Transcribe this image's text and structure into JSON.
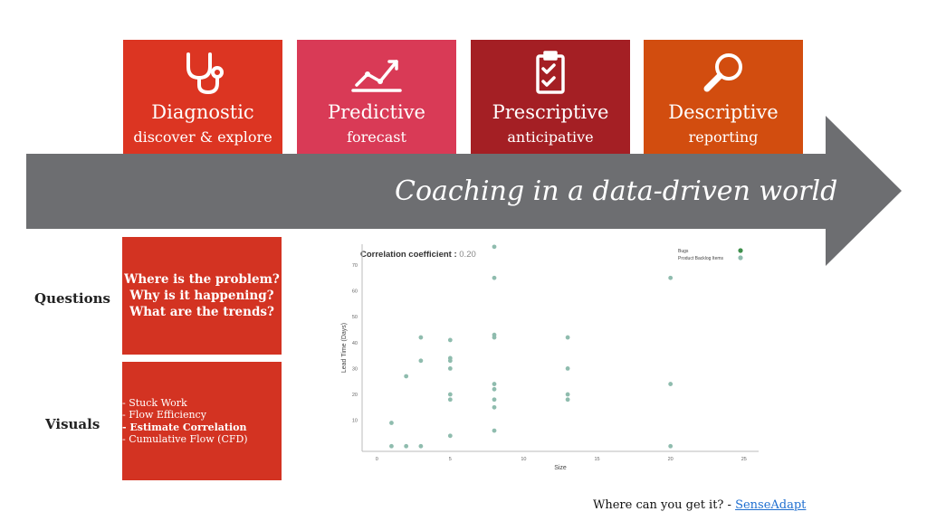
{
  "cards": [
    {
      "title": "Diagnostic",
      "subtitle": "discover & explore",
      "icon": "stethoscope-icon",
      "color": "#dc3522"
    },
    {
      "title": "Predictive",
      "subtitle": "forecast",
      "icon": "trend-chart-icon",
      "color": "#d93a56"
    },
    {
      "title": "Prescriptive",
      "subtitle": "anticipative",
      "icon": "clipboard-check-icon",
      "color": "#a41f24"
    },
    {
      "title": "Descriptive",
      "subtitle": "reporting",
      "icon": "magnifier-icon",
      "color": "#d24d0f"
    }
  ],
  "arrow": {
    "text": "Coaching in a data-driven world",
    "color": "#6d6e71"
  },
  "rows": {
    "questions_label": "Questions",
    "visuals_label": "Visuals"
  },
  "questions": [
    "Where is the problem?",
    "Why is it happening?",
    "What are the trends?"
  ],
  "visuals": [
    "- Stuck Work",
    "- Flow Efficiency",
    "- Estimate Correlation",
    "- Cumulative Flow (CFD)"
  ],
  "chart_data": {
    "type": "scatter",
    "title": "Correlation coefficient :",
    "title_value": "0.20",
    "xlabel": "Size",
    "ylabel": "Lead Time (Days)",
    "xlim": [
      -1,
      26
    ],
    "ylim": [
      -2,
      78
    ],
    "xticks": [
      0,
      5,
      10,
      15,
      20,
      25
    ],
    "yticks": [
      10,
      20,
      30,
      40,
      50,
      60,
      70
    ],
    "legend": [
      "Bugs",
      "Product Backlog Items"
    ],
    "legend_position": "top-right",
    "colors": [
      "#3f8f4c",
      "#8fbcae"
    ],
    "points": [
      {
        "x": 1,
        "y": 9
      },
      {
        "x": 1,
        "y": 0
      },
      {
        "x": 2,
        "y": 27
      },
      {
        "x": 2,
        "y": 0
      },
      {
        "x": 3,
        "y": 42
      },
      {
        "x": 3,
        "y": 33
      },
      {
        "x": 3,
        "y": 0
      },
      {
        "x": 5,
        "y": 41
      },
      {
        "x": 5,
        "y": 34
      },
      {
        "x": 5,
        "y": 33
      },
      {
        "x": 5,
        "y": 30
      },
      {
        "x": 5,
        "y": 20
      },
      {
        "x": 5,
        "y": 18
      },
      {
        "x": 5,
        "y": 4
      },
      {
        "x": 8,
        "y": 77
      },
      {
        "x": 8,
        "y": 65
      },
      {
        "x": 8,
        "y": 43
      },
      {
        "x": 8,
        "y": 42
      },
      {
        "x": 8,
        "y": 24
      },
      {
        "x": 8,
        "y": 22
      },
      {
        "x": 8,
        "y": 18
      },
      {
        "x": 8,
        "y": 15
      },
      {
        "x": 8,
        "y": 6
      },
      {
        "x": 13,
        "y": 42
      },
      {
        "x": 13,
        "y": 30
      },
      {
        "x": 13,
        "y": 20
      },
      {
        "x": 13,
        "y": 18
      },
      {
        "x": 20,
        "y": 65
      },
      {
        "x": 20,
        "y": 24
      },
      {
        "x": 20,
        "y": 0
      }
    ]
  },
  "footer": {
    "text": "Where can you get it? - ",
    "link": "SenseAdapt"
  }
}
